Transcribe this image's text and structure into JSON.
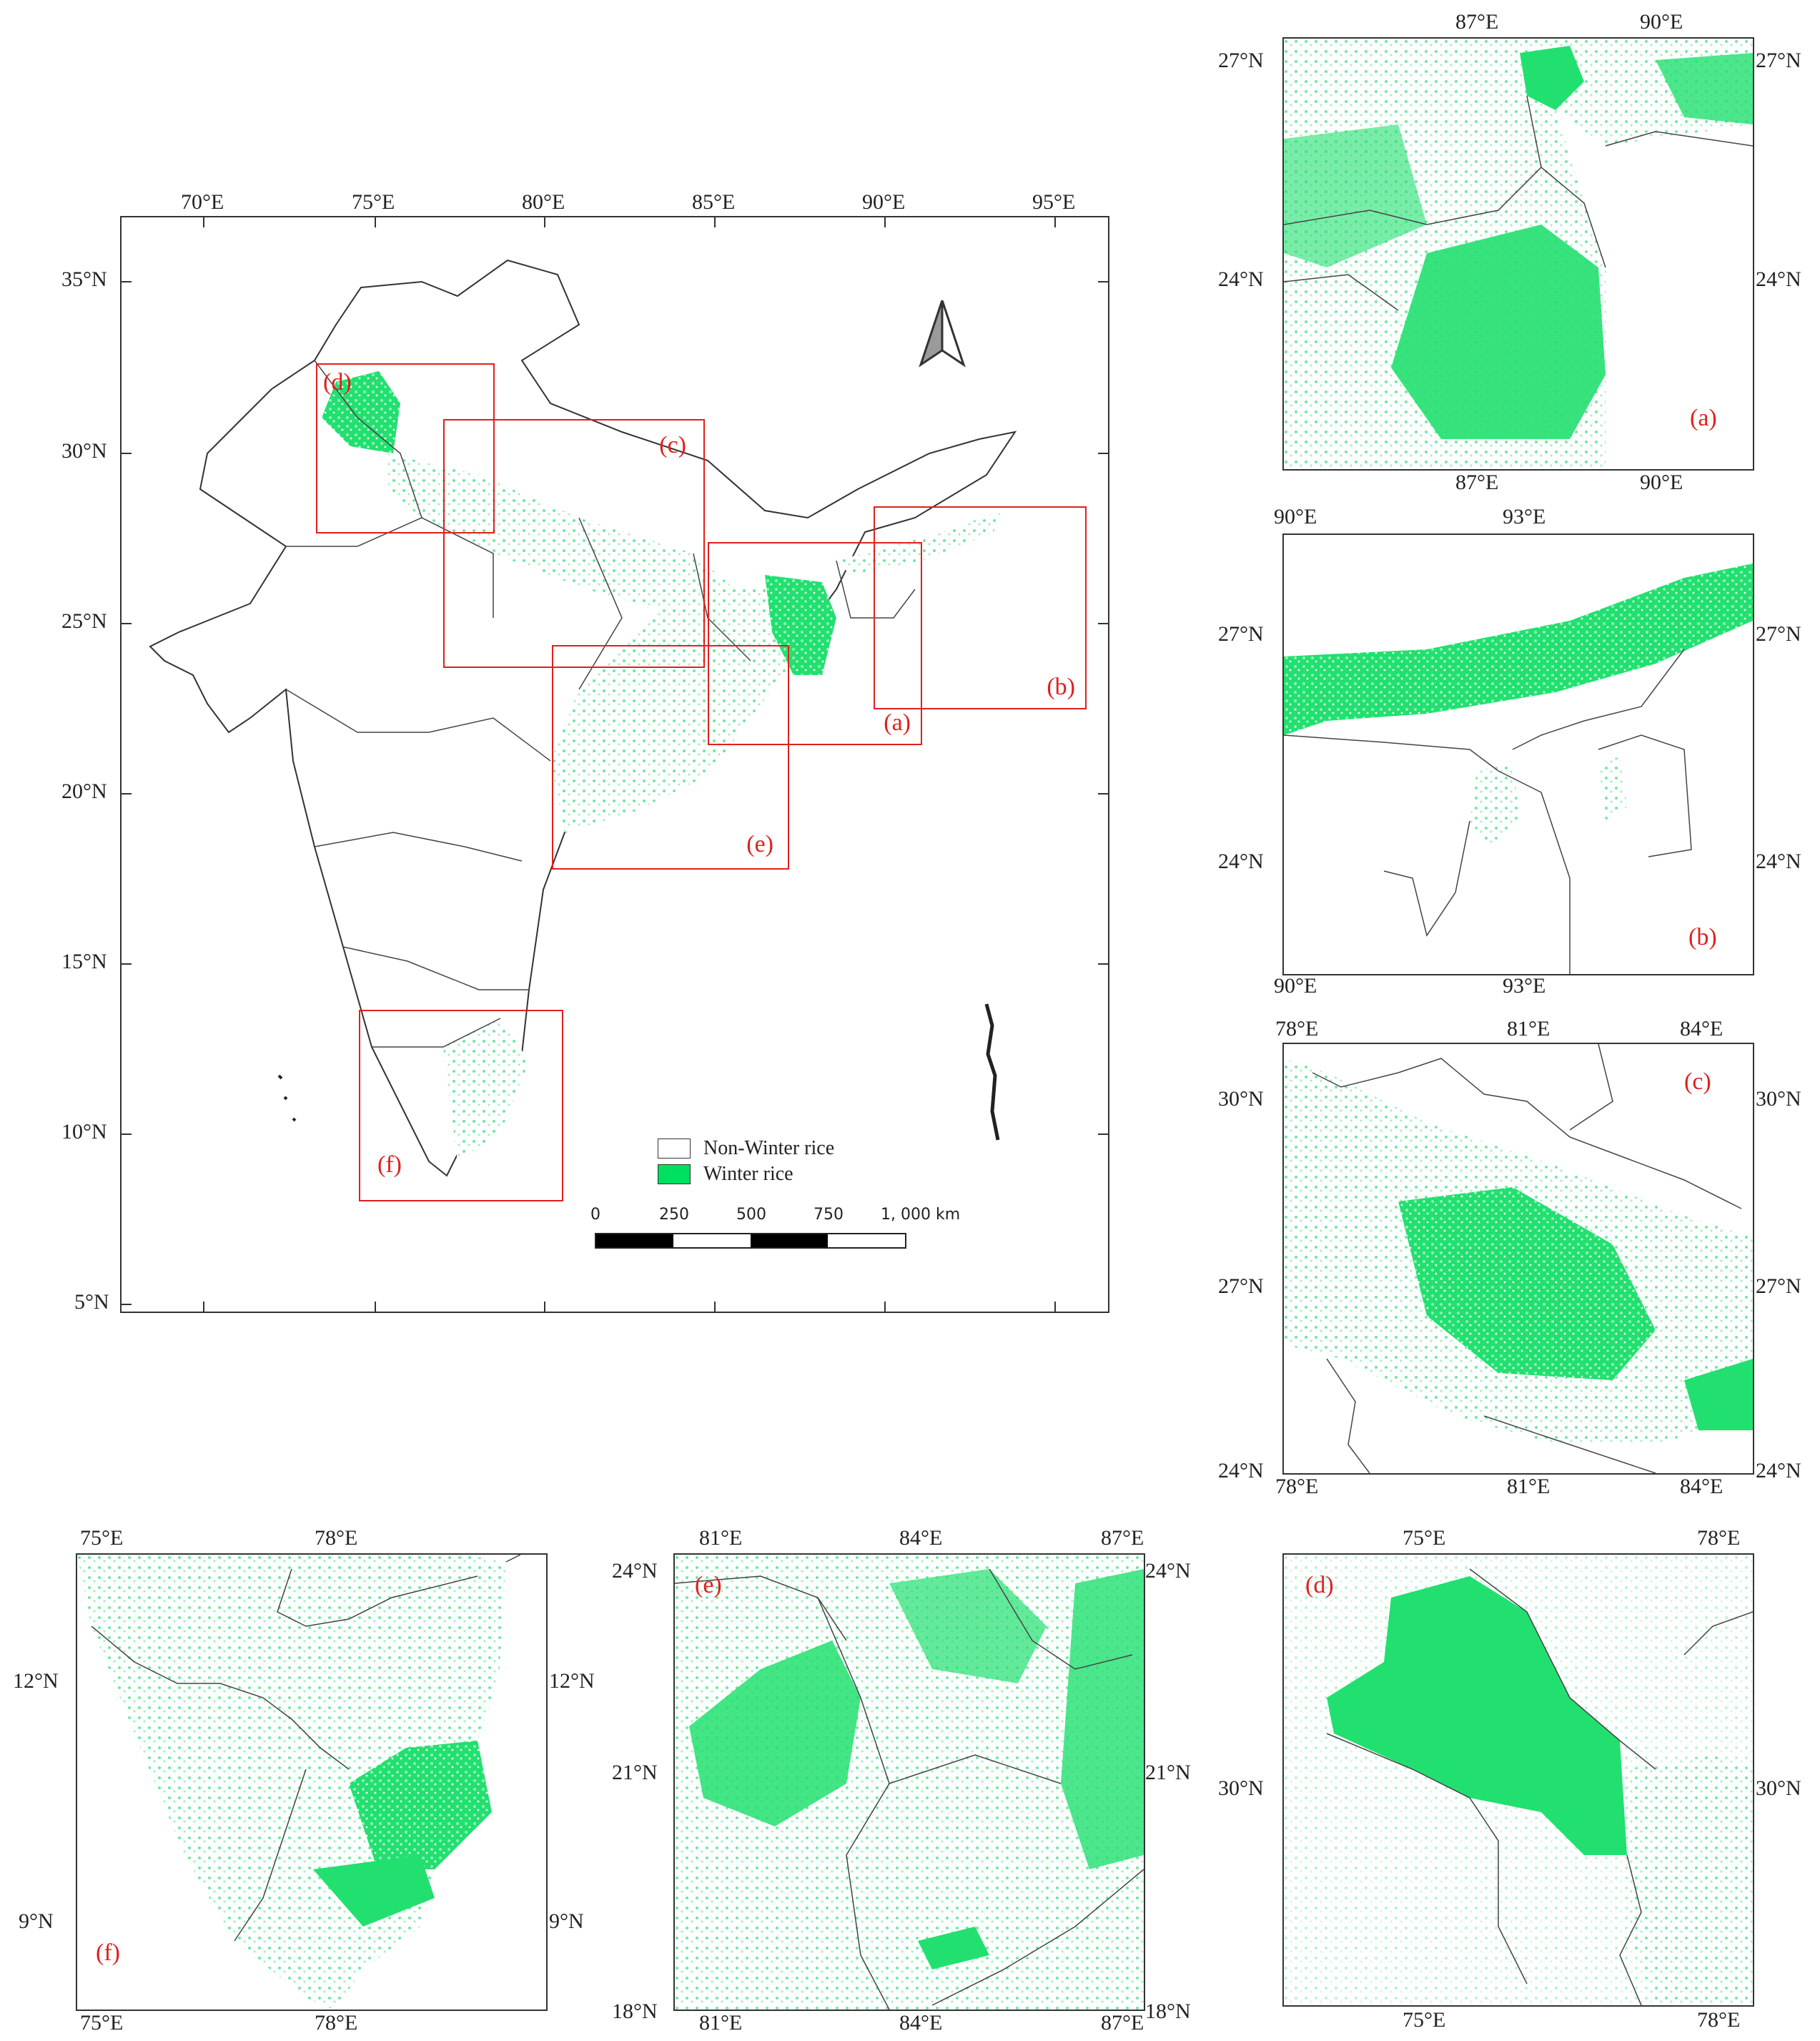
{
  "main_map": {
    "lon_ticks": [
      "70°E",
      "75°E",
      "80°E",
      "85°E",
      "90°E",
      "95°E"
    ],
    "lat_ticks": [
      "35°N",
      "30°N",
      "25°N",
      "20°N",
      "15°N",
      "10°N",
      "5°N"
    ],
    "region_boxes": [
      "(a)",
      "(b)",
      "(c)",
      "(d)",
      "(e)",
      "(f)"
    ],
    "legend": {
      "non_winter": "Non-Winter rice",
      "winter": "Winter rice",
      "non_winter_color": "#ffffff",
      "winter_color": "#00e060"
    },
    "scale": {
      "labels": [
        "0",
        "250",
        "500",
        "750",
        "1, 000  km"
      ]
    },
    "north_arrow": "north-arrow-icon"
  },
  "panel_a": {
    "label": "(a)",
    "top_lon": [
      "87°E",
      "90°E"
    ],
    "bottom_lon": [
      "87°E",
      "90°E"
    ],
    "left_lat": [
      "27°N",
      "24°N"
    ],
    "right_lat": [
      "27°N",
      "24°N"
    ]
  },
  "panel_b": {
    "label": "(b)",
    "top_lon": [
      "90°E",
      "93°E"
    ],
    "bottom_lon": [
      "90°E",
      "93°E"
    ],
    "left_lat": [
      "27°N",
      "24°N"
    ],
    "right_lat": [
      "27°N",
      "24°N"
    ]
  },
  "panel_c": {
    "label": "(c)",
    "top_lon": [
      "78°E",
      "81°E",
      "84°E"
    ],
    "bottom_lon": [
      "78°E",
      "81°E",
      "84°E"
    ],
    "left_lat": [
      "30°N",
      "27°N",
      "24°N"
    ],
    "right_lat": [
      "30°N",
      "27°N",
      "24°N"
    ]
  },
  "panel_d": {
    "label": "(d)",
    "top_lon": [
      "75°E",
      "78°E"
    ],
    "bottom_lon": [
      "75°E",
      "78°E"
    ],
    "left_lat": [
      "30°N"
    ],
    "right_lat": [
      "30°N"
    ]
  },
  "panel_e": {
    "label": "(e)",
    "top_lon": [
      "81°E",
      "84°E",
      "87°E"
    ],
    "bottom_lon": [
      "81°E",
      "84°E",
      "87°E"
    ],
    "left_lat": [
      "24°N",
      "21°N",
      "18°N"
    ],
    "right_lat": [
      "24°N",
      "21°N",
      "18°N"
    ]
  },
  "panel_f": {
    "label": "(f)",
    "top_lon": [
      "75°E",
      "78°E"
    ],
    "bottom_lon": [
      "75°E",
      "78°E"
    ],
    "left_lat": [
      "12°N",
      "9°N"
    ],
    "right_lat": [
      "12°N",
      "9°N"
    ]
  }
}
